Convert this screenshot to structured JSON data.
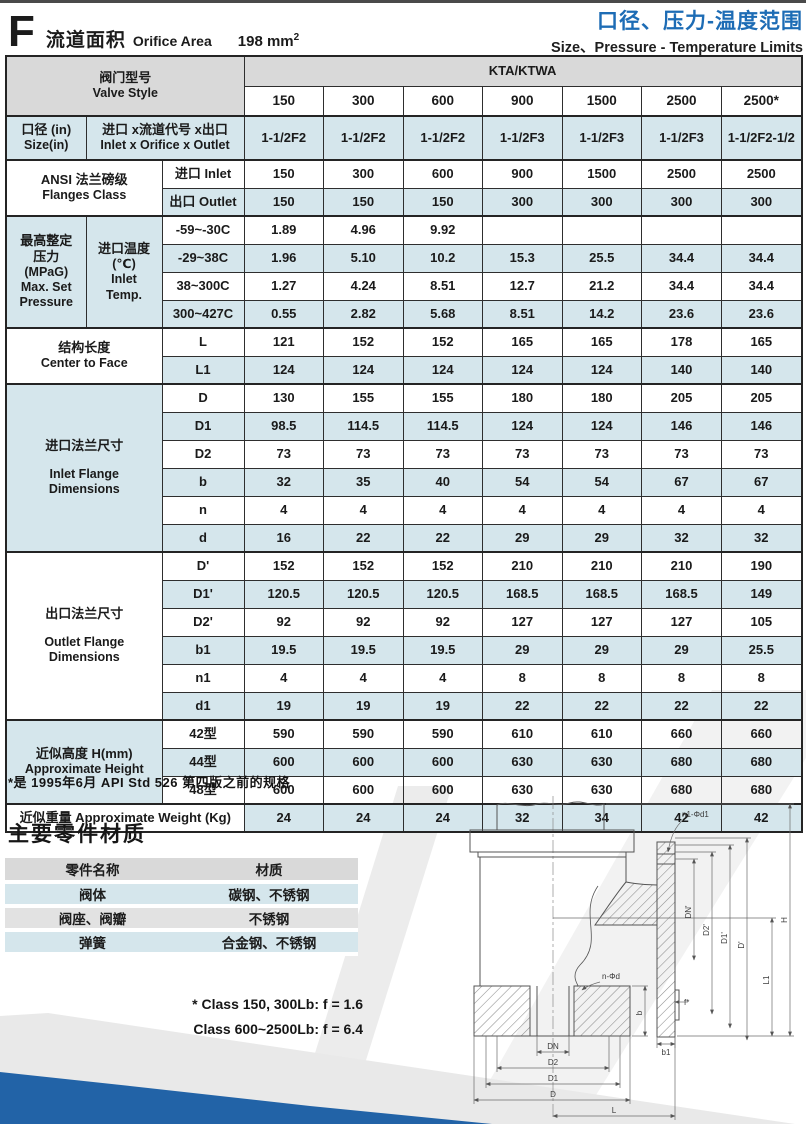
{
  "header": {
    "letter": "F",
    "title_cn": "流道面积",
    "title_en": "Orifice Area",
    "orifice_value": "198 mm",
    "orifice_exp": "2",
    "subtitle_cn": "口径、压力-温度范围",
    "subtitle_en": "Size、Pressure - Temperature Limits"
  },
  "table": {
    "valve_style_cn": "阀门型号",
    "valve_style_en": "Valve Style",
    "series_label": "KTA/KTWA",
    "class_headers": [
      "150",
      "300",
      "600",
      "900",
      "1500",
      "2500",
      "2500*"
    ],
    "size_row": {
      "label_cn": "口径 (in)",
      "label_en": "Size(in)",
      "sub_cn": "进口 x流道代号  x出口",
      "sub_en": "Inlet x Orifice x Outlet",
      "values": [
        "1-1/2F2",
        "1-1/2F2",
        "1-1/2F2",
        "1-1/2F3",
        "1-1/2F3",
        "1-1/2F3",
        "1-1/2F2-1/2"
      ]
    },
    "ansi": {
      "label_cn": "ANSI  法兰磅级",
      "label_en": "Flanges Class",
      "rows": [
        {
          "label": "进口  Inlet",
          "values": [
            "150",
            "300",
            "600",
            "900",
            "1500",
            "2500",
            "2500"
          ]
        },
        {
          "label": "出口  Outlet",
          "values": [
            "150",
            "150",
            "150",
            "300",
            "300",
            "300",
            "300"
          ]
        }
      ]
    },
    "pressure": {
      "label_lines": [
        "最高整定",
        "压力",
        "(MPaG)",
        "Max. Set",
        "Pressure"
      ],
      "sub_lines": [
        "进口温度",
        "(℃)",
        "Inlet",
        "Temp."
      ],
      "rows": [
        {
          "label": "-59~-30C",
          "values": [
            "1.89",
            "4.96",
            "9.92",
            "",
            "",
            "",
            ""
          ]
        },
        {
          "label": "-29~38C",
          "values": [
            "1.96",
            "5.10",
            "10.2",
            "15.3",
            "25.5",
            "34.4",
            "34.4"
          ]
        },
        {
          "label": "38~300C",
          "values": [
            "1.27",
            "4.24",
            "8.51",
            "12.7",
            "21.2",
            "34.4",
            "34.4"
          ]
        },
        {
          "label": "300~427C",
          "values": [
            "0.55",
            "2.82",
            "5.68",
            "8.51",
            "14.2",
            "23.6",
            "23.6"
          ]
        }
      ]
    },
    "center_to_face": {
      "label_cn": "结构长度",
      "label_en": "Center to Face",
      "rows": [
        {
          "label": "L",
          "values": [
            "121",
            "152",
            "152",
            "165",
            "165",
            "178",
            "165"
          ]
        },
        {
          "label": "L1",
          "values": [
            "124",
            "124",
            "124",
            "124",
            "124",
            "140",
            "140"
          ]
        }
      ]
    },
    "inlet_flange": {
      "label_cn": "进口法兰尺寸",
      "label_en": "Inlet Flange",
      "label_en2": "Dimensions",
      "rows": [
        {
          "label": "D",
          "values": [
            "130",
            "155",
            "155",
            "180",
            "180",
            "205",
            "205"
          ]
        },
        {
          "label": "D1",
          "values": [
            "98.5",
            "114.5",
            "114.5",
            "124",
            "124",
            "146",
            "146"
          ]
        },
        {
          "label": "D2",
          "values": [
            "73",
            "73",
            "73",
            "73",
            "73",
            "73",
            "73"
          ]
        },
        {
          "label": "b",
          "values": [
            "32",
            "35",
            "40",
            "54",
            "54",
            "67",
            "67"
          ]
        },
        {
          "label": "n",
          "values": [
            "4",
            "4",
            "4",
            "4",
            "4",
            "4",
            "4"
          ]
        },
        {
          "label": "d",
          "values": [
            "16",
            "22",
            "22",
            "29",
            "29",
            "32",
            "32"
          ]
        }
      ]
    },
    "outlet_flange": {
      "label_cn": "出口法兰尺寸",
      "label_en": "Outlet Flange",
      "label_en2": "Dimensions",
      "rows": [
        {
          "label": "D'",
          "values": [
            "152",
            "152",
            "152",
            "210",
            "210",
            "210",
            "190"
          ]
        },
        {
          "label": "D1'",
          "values": [
            "120.5",
            "120.5",
            "120.5",
            "168.5",
            "168.5",
            "168.5",
            "149"
          ]
        },
        {
          "label": "D2'",
          "values": [
            "92",
            "92",
            "92",
            "127",
            "127",
            "127",
            "105"
          ]
        },
        {
          "label": "b1",
          "values": [
            "19.5",
            "19.5",
            "19.5",
            "29",
            "29",
            "29",
            "25.5"
          ]
        },
        {
          "label": "n1",
          "values": [
            "4",
            "4",
            "4",
            "8",
            "8",
            "8",
            "8"
          ]
        },
        {
          "label": "d1",
          "values": [
            "19",
            "19",
            "19",
            "22",
            "22",
            "22",
            "22"
          ]
        }
      ]
    },
    "height": {
      "label_cn": "近似高度  H(mm)",
      "label_en": "Approximate Height",
      "rows": [
        {
          "label": "42型",
          "values": [
            "590",
            "590",
            "590",
            "610",
            "610",
            "660",
            "660"
          ]
        },
        {
          "label": "44型",
          "values": [
            "600",
            "600",
            "600",
            "630",
            "630",
            "680",
            "680"
          ]
        },
        {
          "label": "48型",
          "values": [
            "600",
            "600",
            "600",
            "630",
            "630",
            "680",
            "680"
          ]
        }
      ]
    },
    "weight": {
      "label": "近似重量 Approximate Weight (Kg)",
      "values": [
        "24",
        "24",
        "24",
        "32",
        "34",
        "42",
        "42"
      ]
    }
  },
  "footnote": "*是 1995年6月 API Std 526  第四版之前的规格",
  "materials": {
    "title": "主要零件材质",
    "header": [
      "零件名称",
      "材质"
    ],
    "rows": [
      [
        "阀体",
        "碳钢、不锈钢"
      ],
      [
        "阀座、阀瓣",
        "不锈钢"
      ],
      [
        "弹簧",
        "合金钢、不锈钢"
      ]
    ],
    "notes": [
      "* Class 150, 300Lb:    f = 1.6",
      "Class 600~2500Lb:  f = 6.4"
    ]
  },
  "drawing": {
    "labels": {
      "n1d1": "n1-Φd1",
      "h": "H",
      "l1": "L1",
      "dn_p": "DN'",
      "d2_p": "D2'",
      "d1_p": "D1'",
      "d_p": "D'",
      "b": "b",
      "b1": "b1",
      "f": "f*",
      "nd": "n-Φd",
      "dn": "DN",
      "d2": "D2",
      "d1": "D1",
      "d": "D",
      "l": "L"
    }
  },
  "colors": {
    "accent_blue": "#1d6cb5",
    "corner_band_blue": "#2263a7",
    "cell_cyan": "#d5e6ec",
    "cell_gray": "#d9d9d9"
  }
}
